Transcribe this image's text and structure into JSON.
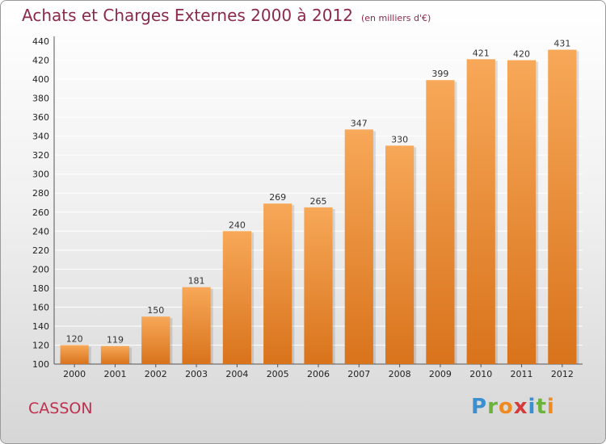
{
  "header": {
    "title": "Achats et Charges Externes 2000 à 2012",
    "unit": "(en milliers d'€)"
  },
  "commune": "CASSON",
  "logo": {
    "text": "Proxiti",
    "letters": [
      {
        "ch": "P",
        "color": "#3a8fd0"
      },
      {
        "ch": "r",
        "color": "#6bb33a"
      },
      {
        "ch": "o",
        "color": "#f08a1e"
      },
      {
        "ch": "x",
        "color": "#d63a3a"
      },
      {
        "ch": "i",
        "color": "#3a8fd0"
      },
      {
        "ch": "t",
        "color": "#6bb33a"
      },
      {
        "ch": "i",
        "color": "#f08a1e"
      }
    ]
  },
  "colors": {
    "bar_top": "#f7a858",
    "bar_bottom": "#d9731c",
    "grid": "#ffffff"
  },
  "chart_data": {
    "type": "bar",
    "title": "Achats et Charges Externes 2000 à 2012",
    "categories": [
      "2000",
      "2001",
      "2002",
      "2003",
      "2004",
      "2005",
      "2006",
      "2007",
      "2008",
      "2009",
      "2010",
      "2011",
      "2012"
    ],
    "values": [
      120,
      119,
      150,
      181,
      240,
      269,
      265,
      347,
      330,
      399,
      421,
      420,
      431
    ],
    "ylim": [
      100,
      440
    ],
    "yticks": [
      100,
      120,
      140,
      160,
      180,
      200,
      220,
      240,
      260,
      280,
      300,
      320,
      340,
      360,
      380,
      400,
      420,
      440
    ],
    "grid": true,
    "data_labels": true
  }
}
